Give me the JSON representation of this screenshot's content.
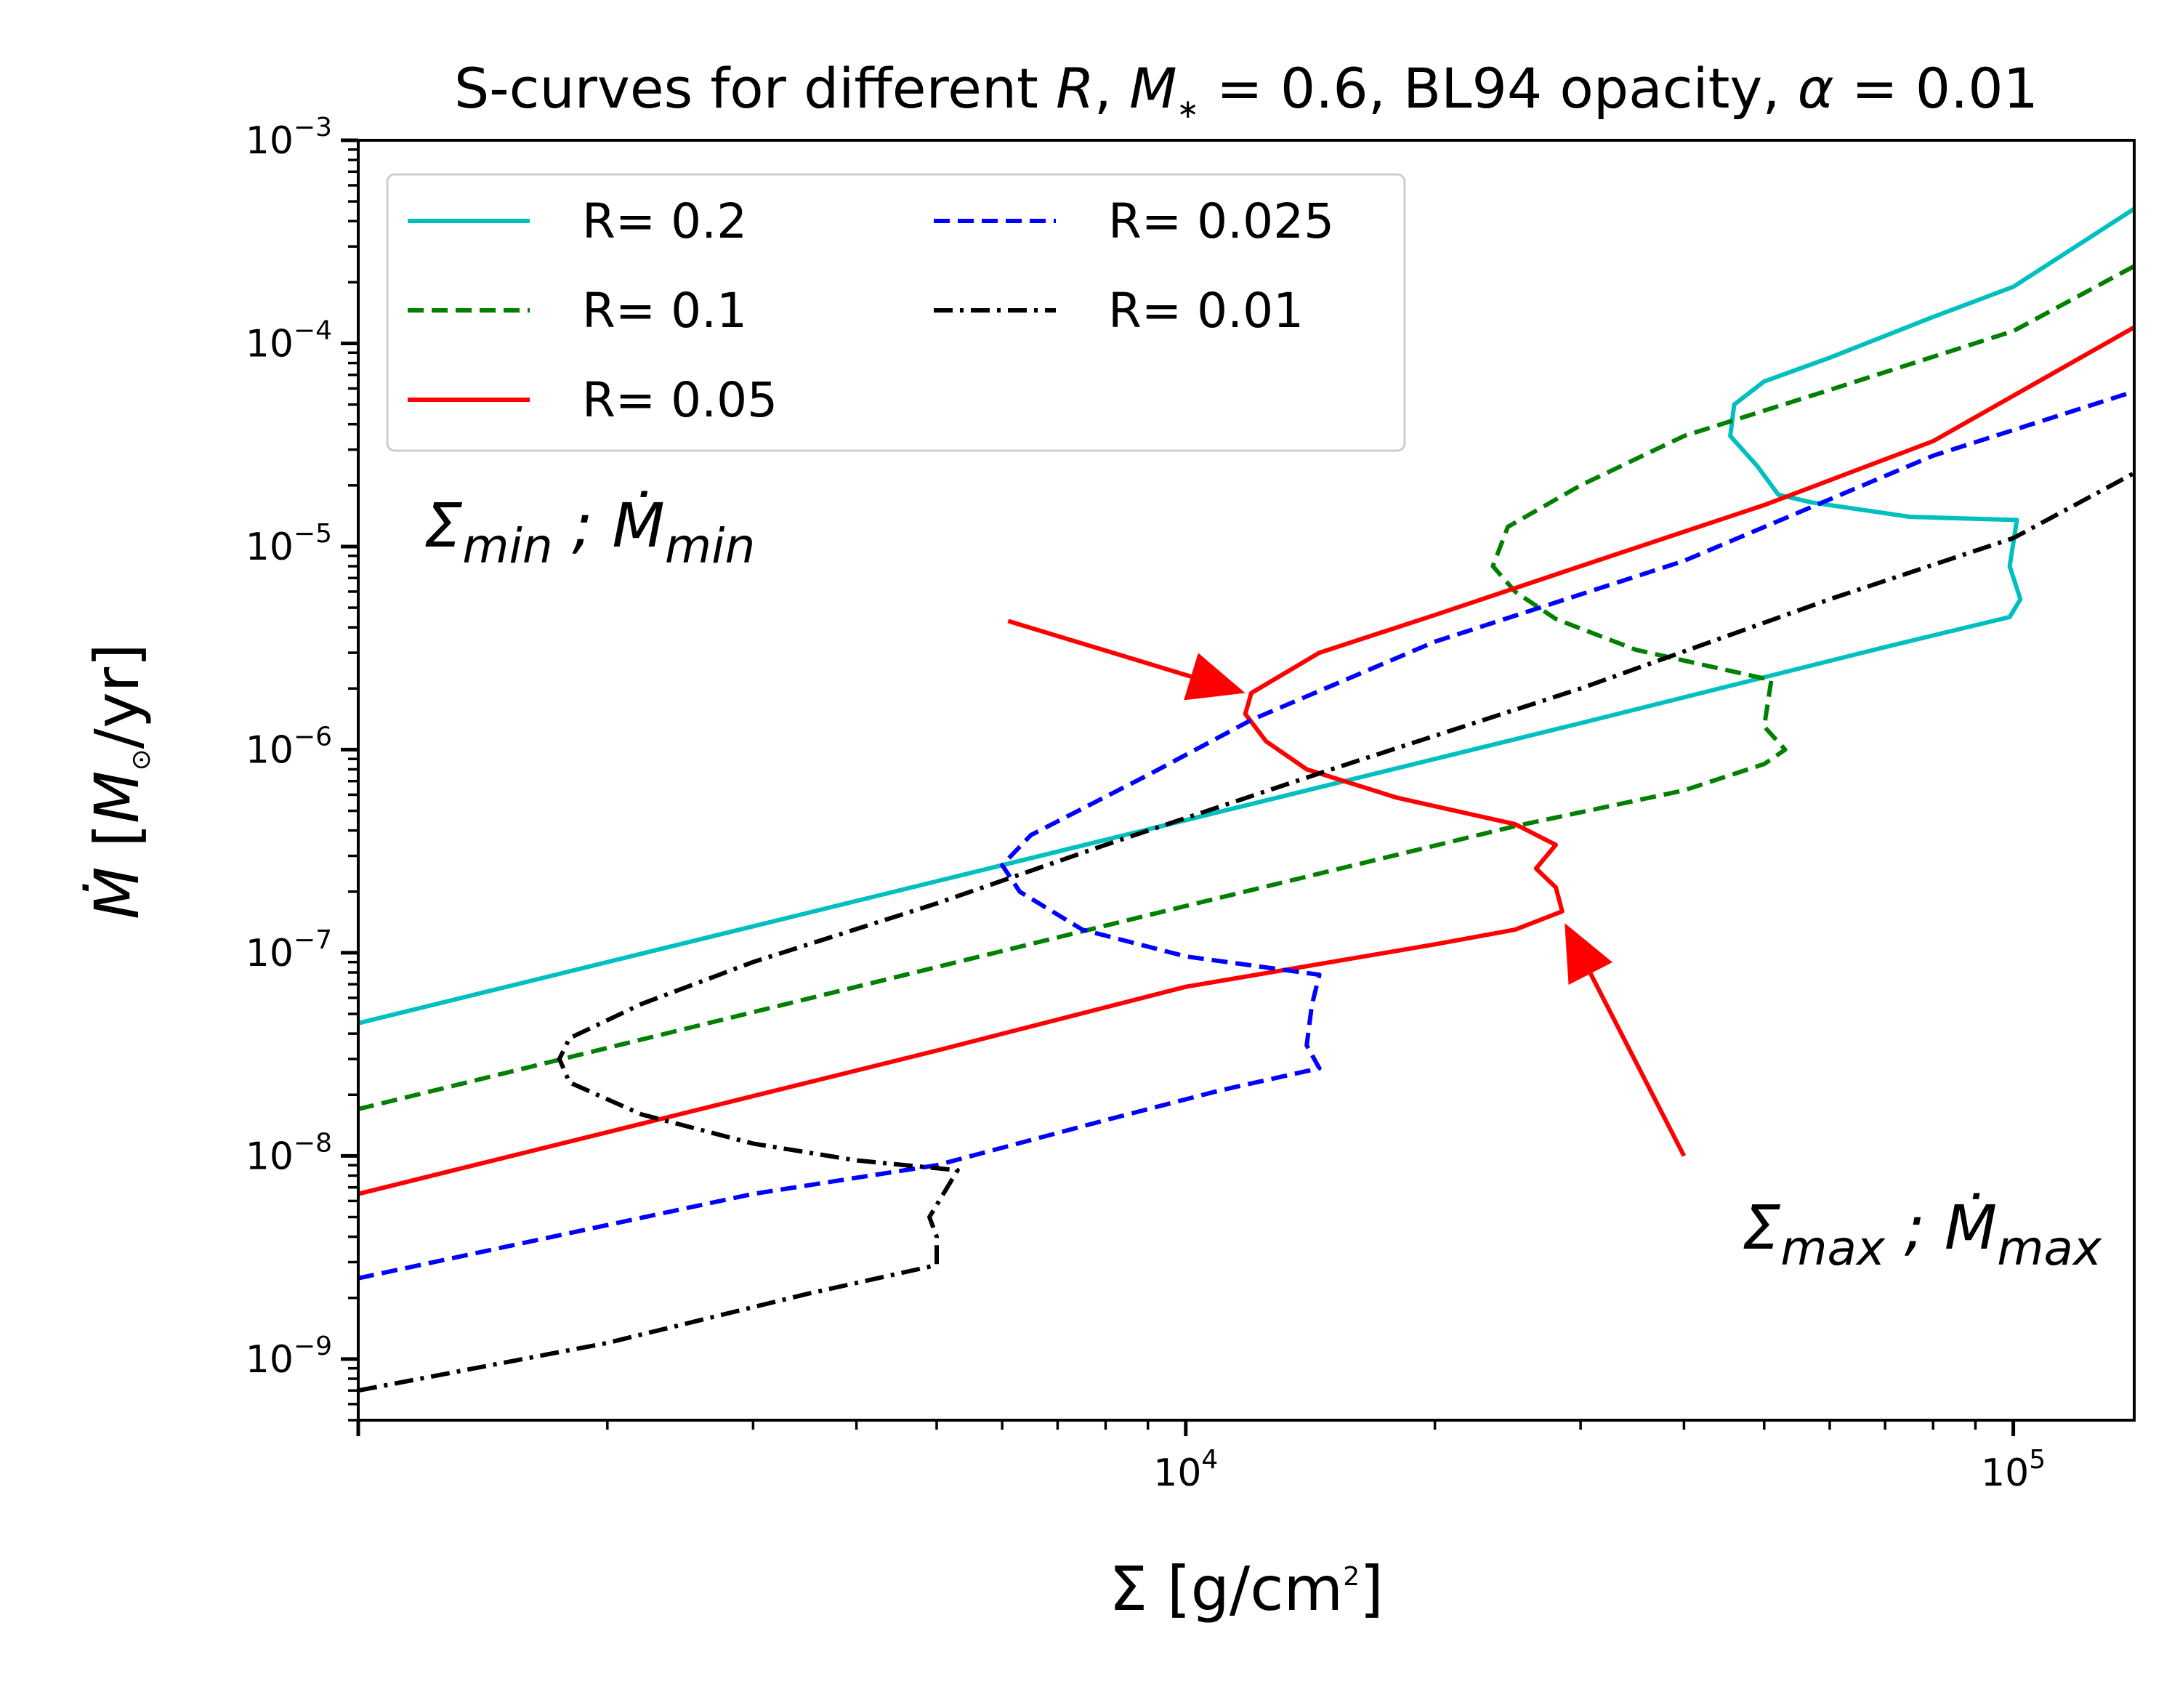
{
  "chart_data": {
    "type": "line",
    "title": "S-curves for different R, M∗ = 0.6, BL94 opacity, α = 0.01",
    "xlabel": "Σ [g/cm²]",
    "ylabel": "Ṁ  [M⊙/yr]",
    "xscale": "log",
    "yscale": "log",
    "xlim": [
      1000,
      140000
    ],
    "ylim": [
      5e-10,
      0.001
    ],
    "x_ticks": [
      {
        "value": 10000,
        "base": "10",
        "exp": "4"
      },
      {
        "value": 100000,
        "base": "10",
        "exp": "5"
      }
    ],
    "y_ticks": [
      {
        "value": 1e-09,
        "base": "10",
        "exp": "−9"
      },
      {
        "value": 1e-08,
        "base": "10",
        "exp": "−8"
      },
      {
        "value": 1e-07,
        "base": "10",
        "exp": "−7"
      },
      {
        "value": 1e-06,
        "base": "10",
        "exp": "−6"
      },
      {
        "value": 1e-05,
        "base": "10",
        "exp": "−5"
      },
      {
        "value": 0.0001,
        "base": "10",
        "exp": "−4"
      },
      {
        "value": 0.001,
        "base": "10",
        "exp": "−3"
      }
    ],
    "legend_position": "top-left",
    "legend_columns": 2,
    "series": [
      {
        "name": "R= 0.2",
        "color": "#00bfbf",
        "style": "solid",
        "points": [
          [
            1000,
            4.5e-08
          ],
          [
            5000,
            2.25e-07
          ],
          [
            10000,
            4.5e-07
          ],
          [
            30000,
            1.35e-06
          ],
          [
            70000,
            3.2e-06
          ],
          [
            99000,
            4.5e-06
          ],
          [
            102000,
            5.5e-06
          ],
          [
            99000,
            8e-06
          ],
          [
            101000,
            1.35e-05
          ],
          [
            75000,
            1.4e-05
          ],
          [
            57000,
            1.65e-05
          ],
          [
            52000,
            1.8e-05
          ],
          [
            49000,
            2.5e-05
          ],
          [
            45500,
            3.5e-05
          ],
          [
            46000,
            5e-05
          ],
          [
            50000,
            6.5e-05
          ],
          [
            60000,
            8.5e-05
          ],
          [
            80000,
            0.000135
          ],
          [
            100000,
            0.00019
          ],
          [
            140000,
            0.00046
          ]
        ]
      },
      {
        "name": "R= 0.1",
        "color": "#007f00",
        "style": "dashed",
        "points": [
          [
            1000,
            1.7e-08
          ],
          [
            4000,
            6.8e-08
          ],
          [
            10000,
            1.7e-07
          ],
          [
            25000,
            4.2e-07
          ],
          [
            40000,
            6.3e-07
          ],
          [
            50000,
            8.5e-07
          ],
          [
            53000,
            1e-06
          ],
          [
            50000,
            1.3e-06
          ],
          [
            51000,
            2.2e-06
          ],
          [
            35000,
            3.1e-06
          ],
          [
            28000,
            4.4e-06
          ],
          [
            25000,
            6e-06
          ],
          [
            23500,
            8e-06
          ],
          [
            24500,
            1.25e-05
          ],
          [
            30000,
            2e-05
          ],
          [
            40000,
            3.5e-05
          ],
          [
            60000,
            5.9e-05
          ],
          [
            100000,
            0.000115
          ],
          [
            140000,
            0.00024
          ]
        ]
      },
      {
        "name": "R= 0.05",
        "color": "#ff0000",
        "style": "solid",
        "points": [
          [
            1000,
            6.5e-09
          ],
          [
            5000,
            3.3e-08
          ],
          [
            10000,
            6.8e-08
          ],
          [
            20000,
            1.1e-07
          ],
          [
            25000,
            1.3e-07
          ],
          [
            28500,
            1.6e-07
          ],
          [
            28000,
            2.1e-07
          ],
          [
            26500,
            2.6e-07
          ],
          [
            28000,
            3.4e-07
          ],
          [
            25000,
            4.3e-07
          ],
          [
            18000,
            5.8e-07
          ],
          [
            14000,
            8e-07
          ],
          [
            12500,
            1.1e-06
          ],
          [
            11800,
            1.5e-06
          ],
          [
            12000,
            1.9e-06
          ],
          [
            14500,
            3e-06
          ],
          [
            20000,
            4.6e-06
          ],
          [
            30000,
            8e-06
          ],
          [
            50000,
            1.6e-05
          ],
          [
            80000,
            3.3e-05
          ],
          [
            140000,
            0.00012
          ]
        ]
      },
      {
        "name": "R= 0.025",
        "color": "#0000ff",
        "style": "dashed",
        "points": [
          [
            1000,
            2.5e-09
          ],
          [
            3000,
            6.5e-09
          ],
          [
            5000,
            9e-09
          ],
          [
            8000,
            1.5e-08
          ],
          [
            11000,
            2.1e-08
          ],
          [
            14500,
            2.7e-08
          ],
          [
            14000,
            3.5e-08
          ],
          [
            14200,
            5.5e-08
          ],
          [
            14500,
            7.8e-08
          ],
          [
            10000,
            9.6e-08
          ],
          [
            7500,
            1.3e-07
          ],
          [
            6300,
            2e-07
          ],
          [
            6000,
            2.7e-07
          ],
          [
            6500,
            3.8e-07
          ],
          [
            9000,
            7.5e-07
          ],
          [
            12000,
            1.4e-06
          ],
          [
            20000,
            3.4e-06
          ],
          [
            40000,
            8.5e-06
          ],
          [
            80000,
            2.8e-05
          ],
          [
            140000,
            5.8e-05
          ]
        ]
      },
      {
        "name": "R= 0.01",
        "color": "#000000",
        "style": "dashdot",
        "points": [
          [
            1000,
            7e-10
          ],
          [
            2000,
            1.2e-09
          ],
          [
            3500,
            2.1e-09
          ],
          [
            5000,
            2.9e-09
          ],
          [
            5000,
            4e-09
          ],
          [
            4900,
            5e-09
          ],
          [
            5300,
            8.5e-09
          ],
          [
            4000,
            9.5e-09
          ],
          [
            3000,
            1.15e-08
          ],
          [
            2200,
            1.6e-08
          ],
          [
            1800,
            2.3e-08
          ],
          [
            1750,
            3e-08
          ],
          [
            1800,
            3.8e-08
          ],
          [
            2200,
            5.6e-08
          ],
          [
            3000,
            9e-08
          ],
          [
            5000,
            1.75e-07
          ],
          [
            8000,
            3.4e-07
          ],
          [
            15000,
            8e-07
          ],
          [
            30000,
            2e-06
          ],
          [
            60000,
            5.5e-06
          ],
          [
            100000,
            1.1e-05
          ],
          [
            140000,
            2.3e-05
          ]
        ]
      }
    ],
    "annotations": [
      {
        "label": "Σmin ; Ṁmin",
        "base1": "Σ",
        "sub1": "min",
        "sep": " ; ",
        "base2": "Ṁ",
        "sub2": "min",
        "color": "#ff0000",
        "text_at": [
          1200,
          1e-05
        ],
        "arrow_from": [
          6100,
          4.3e-06
        ],
        "arrow_to": [
          11800,
          1.9e-06
        ]
      },
      {
        "label": "Σmax ; Ṁmax",
        "base1": "Σ",
        "sub1": "max",
        "sep": " ; ",
        "base2": "Ṁ",
        "sub2": "max",
        "color": "#ff0000",
        "text_at": [
          47000,
          3.5e-09
        ],
        "arrow_from": [
          40000,
          1e-08
        ],
        "arrow_to": [
          28700,
          1.4e-07
        ]
      }
    ]
  }
}
